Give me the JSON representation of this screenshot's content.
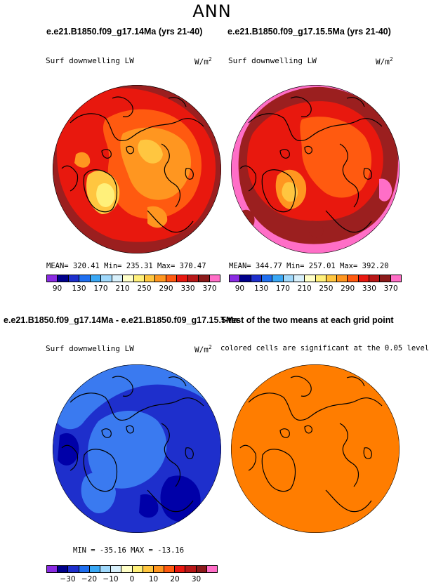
{
  "main_title": "ANN",
  "panels": {
    "top_left": {
      "title": "e.e21.B1850.f09_g17.14Ma (yrs 21-40)",
      "variable": "Surf downwelling LW",
      "units_base": "W/m",
      "units_exp": "2",
      "stats": "MEAN= 320.41   Min= 235.31   Max= 370.47"
    },
    "top_right": {
      "title": "e.e21.B1850.f09_g17.15.5Ma (yrs 21-40)",
      "variable": "Surf downwelling LW",
      "units_base": "W/m",
      "units_exp": "2",
      "stats": "MEAN= 344.77   Min= 257.01   Max= 392.20"
    },
    "bottom_left": {
      "title": "e.e21.B1850.f09_g17.14Ma - e.e21.B1850.f09_g17.15.5Ma",
      "variable": "Surf downwelling LW",
      "units_base": "W/m",
      "units_exp": "2",
      "stats": "MIN = -35.16  MAX = -13.16"
    },
    "bottom_right": {
      "title": "T-test of the two means at each grid point",
      "subtitle": "colored cells are significant at the 0.05 level"
    }
  },
  "colorbars": {
    "abs": {
      "colors": [
        "#8a2be2",
        "#00008b",
        "#1e2fcc",
        "#1f6ff0",
        "#3aa8f5",
        "#9fd8fb",
        "#d8f0fb",
        "#ffffc8",
        "#fff07a",
        "#ffc640",
        "#ff9620",
        "#ff5a10",
        "#e81810",
        "#b81818",
        "#8b1a1a",
        "#ff6ec7"
      ],
      "ticks": [
        "90",
        "130",
        "170",
        "210",
        "250",
        "290",
        "330",
        "370"
      ]
    },
    "diff": {
      "colors": [
        "#8a2be2",
        "#00008b",
        "#1e2fcc",
        "#1f6ff0",
        "#3aa8f5",
        "#9fd8fb",
        "#d8f0fb",
        "#ffffc8",
        "#fff07a",
        "#ffc640",
        "#ff9620",
        "#ff5a10",
        "#e81810",
        "#b81818",
        "#8b1a1a",
        "#ff6ec7"
      ],
      "ticks": [
        "−30",
        "−20",
        "−10",
        "0",
        "10",
        "20",
        "30"
      ]
    }
  },
  "map_colors": {
    "dark_red": "#9b1f1f",
    "red": "#e8180e",
    "orange_red": "#ff5a10",
    "orange": "#ff9620",
    "light_orange": "#ffc640",
    "yellow": "#fff07a",
    "pink": "#ff6ec7",
    "blue_dark": "#0000a8",
    "blue_mid": "#1e2fcc",
    "blue_light": "#3a7af0",
    "ttest_orange": "#ff7d00"
  }
}
